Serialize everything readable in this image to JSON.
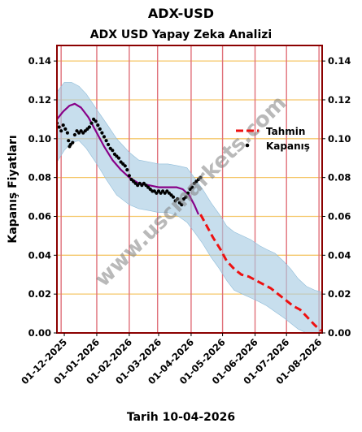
{
  "page": {
    "suptitle": "ADX-USD",
    "footer": "Tarih 10-04-2026",
    "watermark": "www.uscmarkets.com"
  },
  "chart_data": {
    "type": "line",
    "title": "ADX USD Yapay Zeka Analizi",
    "xlabel": "",
    "ylabel": "Kapanış Fiyatları",
    "ylim": [
      0.0,
      0.148
    ],
    "xlim": [
      "2025-11-24",
      "2026-08-04"
    ],
    "yticks": [
      0.0,
      0.02,
      0.04,
      0.06,
      0.08,
      0.1,
      0.12,
      0.14
    ],
    "ytick_labels": [
      "0.00",
      "0.02",
      "0.04",
      "0.06",
      "0.08",
      "0.10",
      "0.12",
      "0.14"
    ],
    "xticks": [
      "2025-12-01",
      "2026-01-01",
      "2026-02-01",
      "2026-03-01",
      "2026-04-01",
      "2026-05-01",
      "2026-06-01",
      "2026-07-01",
      "2026-08-01"
    ],
    "xtick_labels": [
      "01-12-2025",
      "01-01-2026",
      "01-02-2026",
      "01-03-2026",
      "01-04-2026",
      "01-05-2026",
      "01-06-2026",
      "01-07-2026",
      "01-08-2026"
    ],
    "vlines": [
      "2025-11-28",
      "2026-01-01",
      "2026-02-01",
      "2026-02-28",
      "2026-04-01",
      "2026-05-01",
      "2026-06-01",
      "2026-07-01",
      "2026-08-01"
    ],
    "legend": {
      "position": "right",
      "entries": [
        {
          "label": "Tahmin",
          "color": "#ee1111",
          "style": "dashed"
        },
        {
          "label": "Kapanış",
          "color": "#000000",
          "style": "dot"
        }
      ]
    },
    "colors": {
      "closing": "#000000",
      "fit": "#880088",
      "forecast": "#ee1111",
      "band": "#a9cde4",
      "grid": "#f5c76a",
      "vline": "#e0707a",
      "frame": "#8b0000"
    },
    "series": [
      {
        "name": "Kapanış",
        "style": "dots",
        "points": [
          [
            "2025-11-24",
            0.108
          ],
          [
            "2025-11-26",
            0.106
          ],
          [
            "2025-11-28",
            0.104
          ],
          [
            "2025-11-30",
            0.107
          ],
          [
            "2025-12-02",
            0.105
          ],
          [
            "2025-12-04",
            0.103
          ],
          [
            "2025-12-05",
            0.099
          ],
          [
            "2025-12-06",
            0.096
          ],
          [
            "2025-12-07",
            0.097
          ],
          [
            "2025-12-09",
            0.098
          ],
          [
            "2025-12-11",
            0.102
          ],
          [
            "2025-12-13",
            0.104
          ],
          [
            "2025-12-15",
            0.103
          ],
          [
            "2025-12-17",
            0.104
          ],
          [
            "2025-12-19",
            0.103
          ],
          [
            "2025-12-21",
            0.104
          ],
          [
            "2025-12-23",
            0.105
          ],
          [
            "2025-12-25",
            0.106
          ],
          [
            "2025-12-27",
            0.108
          ],
          [
            "2025-12-29",
            0.11
          ],
          [
            "2025-12-31",
            0.109
          ],
          [
            "2026-01-02",
            0.107
          ],
          [
            "2026-01-04",
            0.105
          ],
          [
            "2026-01-06",
            0.103
          ],
          [
            "2026-01-08",
            0.101
          ],
          [
            "2026-01-10",
            0.099
          ],
          [
            "2026-01-12",
            0.097
          ],
          [
            "2026-01-14",
            0.095
          ],
          [
            "2026-01-16",
            0.094
          ],
          [
            "2026-01-18",
            0.092
          ],
          [
            "2026-01-20",
            0.091
          ],
          [
            "2026-01-22",
            0.09
          ],
          [
            "2026-01-24",
            0.088
          ],
          [
            "2026-01-26",
            0.087
          ],
          [
            "2026-01-28",
            0.086
          ],
          [
            "2026-01-30",
            0.084
          ],
          [
            "2026-02-01",
            0.081
          ],
          [
            "2026-02-03",
            0.079
          ],
          [
            "2026-02-05",
            0.078
          ],
          [
            "2026-02-07",
            0.077
          ],
          [
            "2026-02-09",
            0.076
          ],
          [
            "2026-02-11",
            0.077
          ],
          [
            "2026-02-13",
            0.076
          ],
          [
            "2026-02-15",
            0.077
          ],
          [
            "2026-02-17",
            0.076
          ],
          [
            "2026-02-19",
            0.075
          ],
          [
            "2026-02-21",
            0.074
          ],
          [
            "2026-02-23",
            0.073
          ],
          [
            "2026-02-25",
            0.073
          ],
          [
            "2026-02-27",
            0.072
          ],
          [
            "2026-03-01",
            0.073
          ],
          [
            "2026-03-03",
            0.072
          ],
          [
            "2026-03-05",
            0.073
          ],
          [
            "2026-03-07",
            0.072
          ],
          [
            "2026-03-09",
            0.073
          ],
          [
            "2026-03-11",
            0.072
          ],
          [
            "2026-03-13",
            0.071
          ],
          [
            "2026-03-15",
            0.07
          ],
          [
            "2026-03-17",
            0.068
          ],
          [
            "2026-03-19",
            0.069
          ],
          [
            "2026-03-21",
            0.067
          ],
          [
            "2026-03-23",
            0.066
          ],
          [
            "2026-03-25",
            0.069
          ],
          [
            "2026-03-27",
            0.07
          ],
          [
            "2026-03-29",
            0.072
          ],
          [
            "2026-03-31",
            0.074
          ],
          [
            "2026-04-02",
            0.075
          ],
          [
            "2026-04-04",
            0.077
          ],
          [
            "2026-04-06",
            0.078
          ],
          [
            "2026-04-08",
            0.079
          ],
          [
            "2026-04-10",
            0.08
          ]
        ]
      },
      {
        "name": "",
        "style": "solid",
        "points": [
          [
            "2025-11-24",
            0.11
          ],
          [
            "2025-11-30",
            0.114
          ],
          [
            "2025-12-06",
            0.117
          ],
          [
            "2025-12-11",
            0.118
          ],
          [
            "2025-12-17",
            0.116
          ],
          [
            "2025-12-24",
            0.111
          ],
          [
            "2026-01-01",
            0.103
          ],
          [
            "2026-01-08",
            0.096
          ],
          [
            "2026-01-16",
            0.089
          ],
          [
            "2026-01-24",
            0.084
          ],
          [
            "2026-02-01",
            0.08
          ],
          [
            "2026-02-10",
            0.077
          ],
          [
            "2026-02-20",
            0.076
          ],
          [
            "2026-03-01",
            0.075
          ],
          [
            "2026-03-10",
            0.075
          ],
          [
            "2026-03-18",
            0.075
          ],
          [
            "2026-03-24",
            0.074
          ],
          [
            "2026-03-30",
            0.071
          ],
          [
            "2026-04-04",
            0.066
          ],
          [
            "2026-04-08",
            0.061
          ]
        ]
      },
      {
        "name": "Tahmin",
        "style": "dashed",
        "points": [
          [
            "2026-04-10",
            0.061
          ],
          [
            "2026-04-15",
            0.056
          ],
          [
            "2026-04-22",
            0.049
          ],
          [
            "2026-04-29",
            0.043
          ],
          [
            "2026-05-05",
            0.037
          ],
          [
            "2026-05-12",
            0.033
          ],
          [
            "2026-05-19",
            0.03
          ],
          [
            "2026-05-26",
            0.029
          ],
          [
            "2026-06-02",
            0.027
          ],
          [
            "2026-06-09",
            0.025
          ],
          [
            "2026-06-16",
            0.023
          ],
          [
            "2026-06-23",
            0.02
          ],
          [
            "2026-06-30",
            0.017
          ],
          [
            "2026-07-07",
            0.014
          ],
          [
            "2026-07-14",
            0.012
          ],
          [
            "2026-07-21",
            0.008
          ],
          [
            "2026-07-28",
            0.004
          ],
          [
            "2026-08-03",
            0.001
          ]
        ]
      }
    ],
    "band": [
      [
        "2025-11-24",
        0.124,
        0.088
      ],
      [
        "2025-12-01",
        0.129,
        0.094
      ],
      [
        "2025-12-08",
        0.129,
        0.098
      ],
      [
        "2025-12-15",
        0.127,
        0.099
      ],
      [
        "2025-12-22",
        0.123,
        0.095
      ],
      [
        "2026-01-01",
        0.115,
        0.087
      ],
      [
        "2026-01-10",
        0.108,
        0.079
      ],
      [
        "2026-01-20",
        0.1,
        0.071
      ],
      [
        "2026-02-01",
        0.093,
        0.066
      ],
      [
        "2026-02-10",
        0.089,
        0.064
      ],
      [
        "2026-02-20",
        0.088,
        0.063
      ],
      [
        "2026-03-01",
        0.087,
        0.062
      ],
      [
        "2026-03-10",
        0.087,
        0.062
      ],
      [
        "2026-03-20",
        0.086,
        0.06
      ],
      [
        "2026-03-28",
        0.085,
        0.057
      ],
      [
        "2026-04-04",
        0.08,
        0.052
      ],
      [
        "2026-04-12",
        0.074,
        0.046
      ],
      [
        "2026-04-20",
        0.067,
        0.039
      ],
      [
        "2026-04-28",
        0.061,
        0.033
      ],
      [
        "2026-05-05",
        0.055,
        0.027
      ],
      [
        "2026-05-12",
        0.052,
        0.022
      ],
      [
        "2026-05-20",
        0.05,
        0.02
      ],
      [
        "2026-05-28",
        0.048,
        0.018
      ],
      [
        "2026-06-05",
        0.045,
        0.016
      ],
      [
        "2026-06-12",
        0.043,
        0.014
      ],
      [
        "2026-06-20",
        0.041,
        0.011
      ],
      [
        "2026-06-28",
        0.037,
        0.008
      ],
      [
        "2026-07-05",
        0.033,
        0.005
      ],
      [
        "2026-07-12",
        0.028,
        0.002
      ],
      [
        "2026-07-20",
        0.024,
        0.0
      ],
      [
        "2026-07-28",
        0.022,
        0.0
      ],
      [
        "2026-08-04",
        0.021,
        0.0
      ]
    ]
  }
}
